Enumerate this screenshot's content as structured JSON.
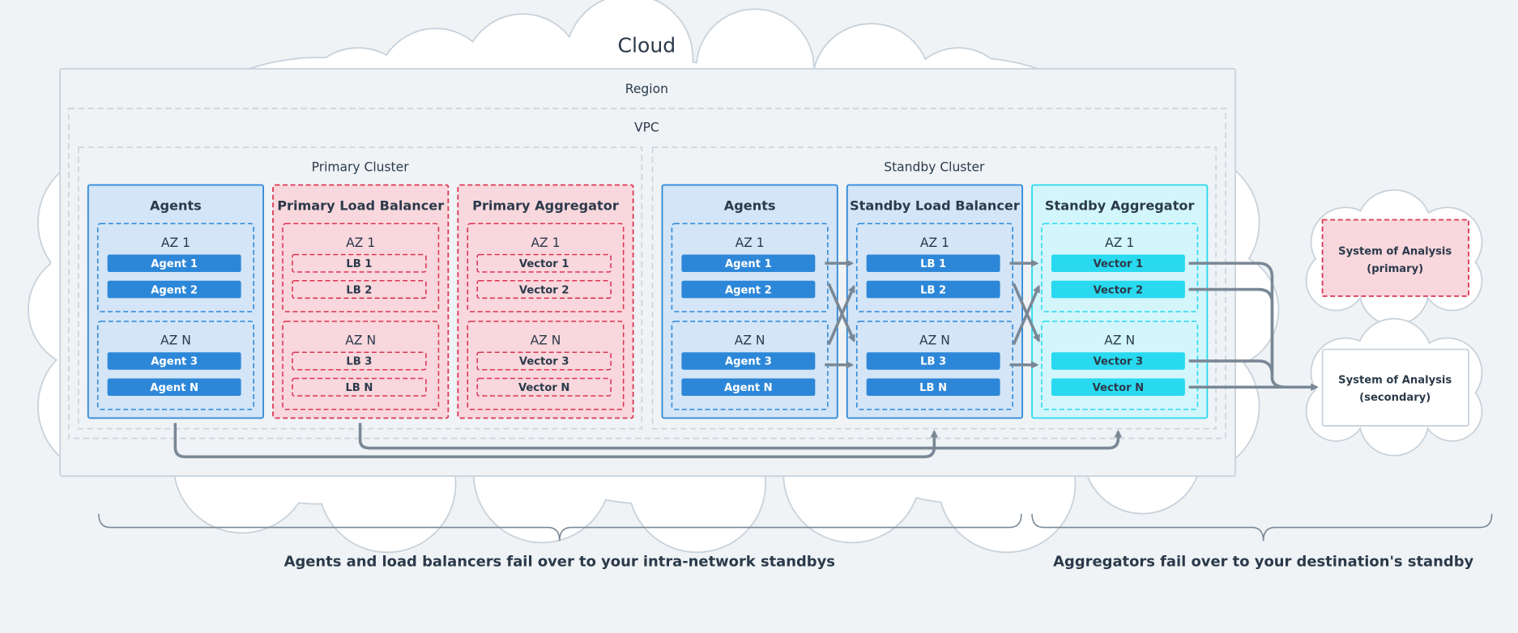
{
  "cloud_label": "Cloud",
  "region_label": "Region",
  "vpc_label": "VPC",
  "colors": {
    "blue": "#2d87d8",
    "blue_fill": "#d3e5f6",
    "red": "#dc3550",
    "red_fill": "#f8d7dd",
    "cyan": "#29d9ef",
    "cyan_fill": "#d2f6fb",
    "wire": "#7a8896",
    "text": "#2b3a4a"
  },
  "clusters": [
    {
      "label": "Primary Cluster",
      "columns": [
        {
          "title": "Agents",
          "style": "blue",
          "zones": [
            {
              "label": "AZ 1",
              "items": [
                "Agent 1",
                "Agent 2"
              ]
            },
            {
              "label": "AZ N",
              "items": [
                "Agent 3",
                "Agent N"
              ]
            }
          ]
        },
        {
          "title": "Primary Load Balancer",
          "style": "red",
          "zones": [
            {
              "label": "AZ 1",
              "items": [
                "LB 1",
                "LB 2"
              ]
            },
            {
              "label": "AZ N",
              "items": [
                "LB 3",
                "LB N"
              ]
            }
          ]
        },
        {
          "title": "Primary Aggregator",
          "style": "red",
          "zones": [
            {
              "label": "AZ 1",
              "items": [
                "Vector 1",
                "Vector 2"
              ]
            },
            {
              "label": "AZ N",
              "items": [
                "Vector 3",
                "Vector N"
              ]
            }
          ]
        }
      ]
    },
    {
      "label": "Standby Cluster",
      "columns": [
        {
          "title": "Agents",
          "style": "blue",
          "zones": [
            {
              "label": "AZ 1",
              "items": [
                "Agent 1",
                "Agent 2"
              ]
            },
            {
              "label": "AZ N",
              "items": [
                "Agent 3",
                "Agent N"
              ]
            }
          ]
        },
        {
          "title": "Standby Load Balancer",
          "style": "blue",
          "zones": [
            {
              "label": "AZ 1",
              "items": [
                "LB 1",
                "LB 2"
              ]
            },
            {
              "label": "AZ N",
              "items": [
                "LB 3",
                "LB N"
              ]
            }
          ]
        },
        {
          "title": "Standby Aggregator",
          "style": "cyan",
          "zones": [
            {
              "label": "AZ 1",
              "items": [
                "Vector 1",
                "Vector 2"
              ]
            },
            {
              "label": "AZ N",
              "items": [
                "Vector 3",
                "Vector N"
              ]
            }
          ]
        }
      ]
    }
  ],
  "destinations": {
    "primary": [
      "System of Analysis",
      "(primary)"
    ],
    "secondary": [
      "System of Analysis",
      "(secondary)"
    ]
  },
  "captions": {
    "left": "Agents and load balancers fail over to your intra-network standbys",
    "right": "Aggregators fail over to your destination's standby"
  }
}
